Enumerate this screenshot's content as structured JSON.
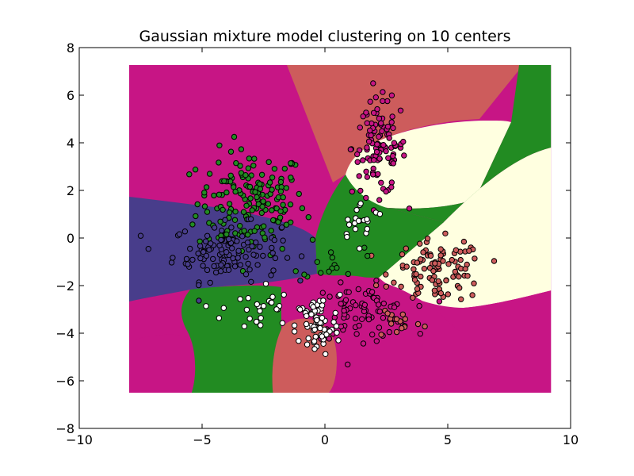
{
  "chart_data": {
    "type": "scatter",
    "title": "Gaussian mixture model clustering on 10 centers",
    "xlabel": "",
    "ylabel": "",
    "xlim": [
      -10,
      10
    ],
    "ylim": [
      -8,
      8
    ],
    "x_ticks": [
      -10,
      -5,
      0,
      5,
      10
    ],
    "y_ticks": [
      -8,
      -6,
      -4,
      -2,
      0,
      2,
      4,
      6,
      8
    ],
    "x_tick_labels": [
      "−10",
      "−5",
      "0",
      "5",
      "10"
    ],
    "y_tick_labels": [
      "−8",
      "−6",
      "−4",
      "−2",
      "0",
      "2",
      "4",
      "6",
      "8"
    ],
    "grid": false,
    "legend": "none",
    "decision_region_extent": {
      "x": [
        -8.0,
        9.2
      ],
      "y": [
        -6.5,
        7.3
      ]
    },
    "colors": {
      "magenta": "#c71585",
      "indigo": "#483d8b",
      "green": "#228b22",
      "salmon": "#cd5c5c",
      "cream": "#ffffe0",
      "point_white": "#ffffff",
      "point_edge": "#000000"
    },
    "regions": [
      {
        "color": "magenta",
        "label": "upper-left region"
      },
      {
        "color": "salmon",
        "label": "upper-middle region"
      },
      {
        "color": "cream",
        "label": "upper-right band"
      },
      {
        "color": "green",
        "label": "right green band"
      },
      {
        "color": "cream",
        "label": "right region"
      },
      {
        "color": "indigo",
        "label": "left region"
      },
      {
        "color": "green",
        "label": "center green region"
      },
      {
        "color": "magenta",
        "label": "lower-middle region"
      },
      {
        "color": "salmon",
        "label": "bottom circle region"
      },
      {
        "color": "green",
        "label": "lower-left green region"
      },
      {
        "color": "magenta",
        "label": "bottom-left region"
      },
      {
        "color": "magenta",
        "label": "bottom-right region"
      }
    ],
    "series": [
      {
        "color": "green",
        "center": [
          -3.0,
          1.5
        ],
        "spread": [
          1.1,
          1.1
        ],
        "count": 170
      },
      {
        "color": "indigo",
        "center": [
          -4.0,
          -0.6
        ],
        "spread": [
          1.1,
          0.6
        ],
        "count": 110
      },
      {
        "color": "magenta",
        "center": [
          2.2,
          3.8
        ],
        "spread": [
          0.55,
          1.0
        ],
        "count": 110
      },
      {
        "color": "salmon",
        "center": [
          4.6,
          -1.4
        ],
        "spread": [
          0.95,
          0.65
        ],
        "count": 100
      },
      {
        "color": "magenta",
        "center": [
          1.5,
          -3.1
        ],
        "spread": [
          1.0,
          0.55
        ],
        "count": 80
      },
      {
        "color": "point_white",
        "center": [
          -0.3,
          -3.7
        ],
        "spread": [
          0.45,
          0.65
        ],
        "count": 70
      },
      {
        "color": "salmon",
        "center": [
          3.0,
          -3.5
        ],
        "spread": [
          0.5,
          0.35
        ],
        "count": 15
      },
      {
        "color": "point_white",
        "center": [
          1.5,
          0.7
        ],
        "spread": [
          0.5,
          0.4
        ],
        "count": 20
      },
      {
        "color": "point_white",
        "center": [
          -2.8,
          -3.0
        ],
        "spread": [
          0.7,
          0.6
        ],
        "count": 25
      },
      {
        "color": "green",
        "center": [
          0.3,
          -0.8
        ],
        "spread": [
          0.6,
          0.5
        ],
        "count": 15
      }
    ],
    "marker": "circle"
  }
}
